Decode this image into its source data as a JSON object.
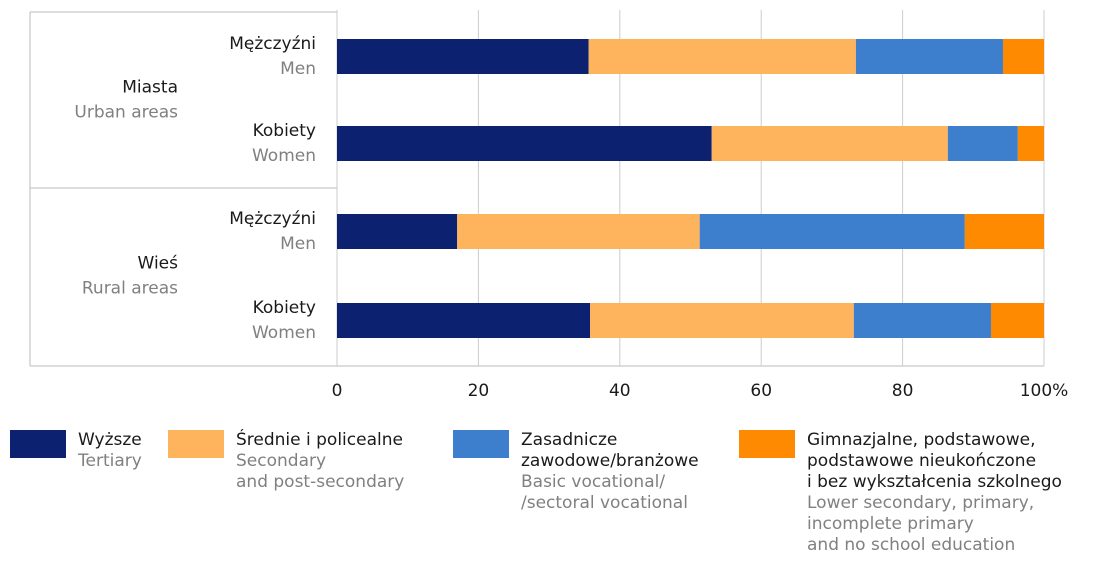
{
  "chart_data": {
    "type": "stacked-bar-horizontal",
    "groups": [
      {
        "name": "Miasta",
        "name_en": "Urban areas",
        "categories": [
          {
            "name": "Mężczyźni",
            "name_en": "Men"
          },
          {
            "name": "Kobiety",
            "name_en": "Women"
          }
        ]
      },
      {
        "name": "Wieś",
        "name_en": "Rural areas",
        "categories": [
          {
            "name": "Mężczyźni",
            "name_en": "Men"
          },
          {
            "name": "Kobiety",
            "name_en": "Women"
          }
        ]
      }
    ],
    "series": [
      {
        "name": "Wyższe",
        "name_en": "Tertiary",
        "color": "#0c2270",
        "values": [
          35.6,
          53.0,
          17.0,
          35.8
        ]
      },
      {
        "name": "Średnie i policealne",
        "name_en": "Secondary\nand post-secondary",
        "color": "#fdb45c",
        "values": [
          37.8,
          33.4,
          34.3,
          37.3
        ]
      },
      {
        "name": "Zasadnicze\nzawodowe/branżowe",
        "name_en": "Basic vocational/\n/sectoral vocational",
        "color": "#3d7fcc",
        "values": [
          20.8,
          9.9,
          37.5,
          19.4
        ]
      },
      {
        "name": "Gimnazjalne, podstawowe,\npodstawowe nieukończone\ni bez wykształcenia szkolnego",
        "name_en": "Lower secondary, primary,\nincomplete primary\nand no school education",
        "color": "#fd8a00",
        "values": [
          5.8,
          3.7,
          11.2,
          7.5
        ]
      }
    ],
    "xlim": [
      0,
      100
    ],
    "xticks": [
      0,
      20,
      40,
      60,
      80,
      {
        "value": 100,
        "label": "100%"
      }
    ],
    "grid": true
  }
}
